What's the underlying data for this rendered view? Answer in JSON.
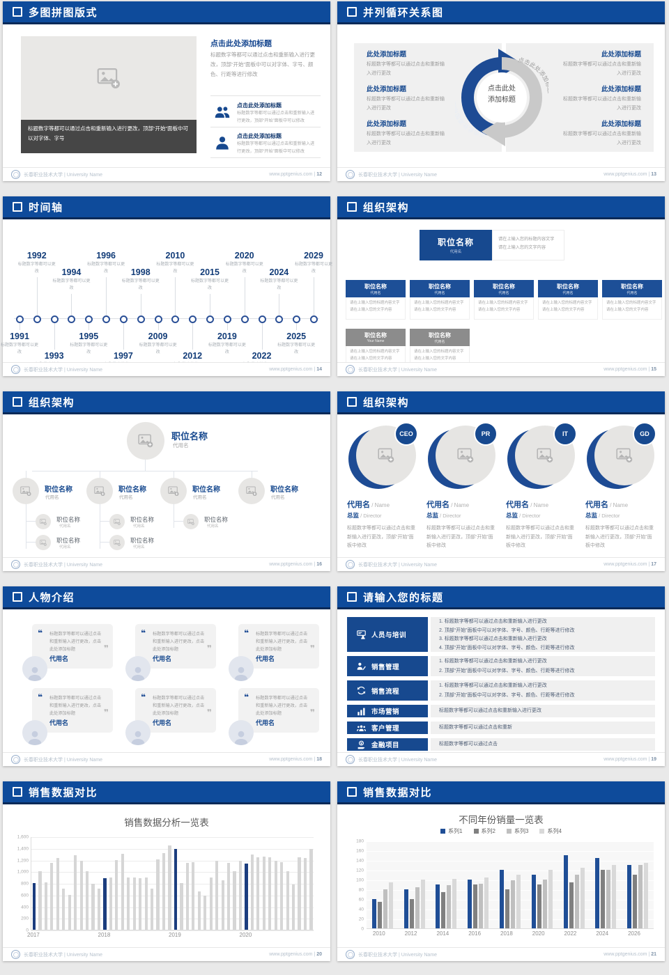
{
  "footer": {
    "org": "长春职业技术大学",
    "separator": "|",
    "org_en": "University Name",
    "site": "www.pptgenius.com"
  },
  "slides_meta": [
    {
      "key": "s12",
      "title": "多图拼图版式",
      "page": "12"
    },
    {
      "key": "s13",
      "title": "并列循环关系图",
      "page": "13"
    },
    {
      "key": "s14",
      "title": "时间轴",
      "page": "14"
    },
    {
      "key": "s15",
      "title": "组织架构",
      "page": "15"
    },
    {
      "key": "s16",
      "title": "组织架构",
      "page": "16"
    },
    {
      "key": "s17",
      "title": "组织架构",
      "page": "17"
    },
    {
      "key": "s18",
      "title": "人物介绍",
      "page": "18"
    },
    {
      "key": "s19",
      "title": "请输入您的标题",
      "page": "19"
    },
    {
      "key": "s20",
      "title": "销售数据对比",
      "page": "20"
    },
    {
      "key": "s21",
      "title": "销售数据对比",
      "page": "21"
    }
  ],
  "slides": {
    "s12": {
      "caption": "标题数字等都可以通过点击和重新输入进行更改，顶部“开始”面板中可以对字体、字号",
      "right_title": "点击此处添加标题",
      "right_body": "标题数字等都可以通过点击和重新输入进行更改，顶部“开始”面板中可以对字体、字号、颜色、行距等进行修改",
      "items": [
        {
          "icon": "people-group-icon",
          "title": "点击此处添加标题",
          "text": "标题数字等都可以通过点击和重新输入进行更改，顶部“开始”面板中可以修改"
        },
        {
          "icon": "person-icon",
          "title": "点击此处添加标题",
          "text": "标题数字等都可以通过点击和重新输入进行更改，顶部“开始”面板中可以修改"
        }
      ]
    },
    "s13": {
      "center_line1": "点击此处",
      "center_line2": "添加标题",
      "arrow_label_left": "点击此处添加标题",
      "arrow_label_right": "点击此处添加标题",
      "left_items": [
        {
          "title": "此处添加标题",
          "text": "标题数字等都可以通过点击和重新输入进行更改"
        },
        {
          "title": "此处添加标题",
          "text": "标题数字等都可以通过点击和重新输入进行更改"
        },
        {
          "title": "此处添加标题",
          "text": "标题数字等都可以通过点击和重新输入进行更改"
        }
      ],
      "right_items": [
        {
          "title": "此处添加标题",
          "text": "标题数字等都可以通过点击和重新输入进行更改"
        },
        {
          "title": "此处添加标题",
          "text": "标题数字等都可以通过点击和重新输入进行更改"
        },
        {
          "title": "此处添加标题",
          "text": "标题数字等都可以通过点击和重新输入进行更改"
        }
      ]
    },
    "s14": {
      "caption": "标题数字等都可以更改",
      "events": [
        {
          "year": "1991",
          "side": "below",
          "level": "near"
        },
        {
          "year": "1992",
          "side": "above",
          "level": "far"
        },
        {
          "year": "1993",
          "side": "below",
          "level": "far"
        },
        {
          "year": "1994",
          "side": "above",
          "level": "near"
        },
        {
          "year": "1995",
          "side": "below",
          "level": "near"
        },
        {
          "year": "1996",
          "side": "above",
          "level": "far"
        },
        {
          "year": "1997",
          "side": "below",
          "level": "far"
        },
        {
          "year": "1998",
          "side": "above",
          "level": "near"
        },
        {
          "year": "2009",
          "side": "below",
          "level": "near"
        },
        {
          "year": "2010",
          "side": "above",
          "level": "far"
        },
        {
          "year": "2012",
          "side": "below",
          "level": "far"
        },
        {
          "year": "2015",
          "side": "above",
          "level": "near"
        },
        {
          "year": "2019",
          "side": "below",
          "level": "near"
        },
        {
          "year": "2020",
          "side": "above",
          "level": "far"
        },
        {
          "year": "2022",
          "side": "below",
          "level": "far"
        },
        {
          "year": "2024",
          "side": "above",
          "level": "near"
        },
        {
          "year": "2025",
          "side": "below",
          "level": "near"
        },
        {
          "year": "2029",
          "side": "above",
          "level": "far"
        }
      ]
    },
    "s15": {
      "root_title": "职位名称",
      "root_sub": "代用名",
      "info_line1": "请在上输入您的标题内容文字",
      "info_line2": "请在上输入您的文字内容",
      "card_line1": "请在上输入您的标题内容文字",
      "card_line2": "请在上输入您的文字内容",
      "row1": [
        {
          "title": "职位名称",
          "sub": "代用名",
          "header_color": "#1d4f97"
        },
        {
          "title": "职位名称",
          "sub": "代用名",
          "header_color": "#1d4f97"
        },
        {
          "title": "职位名称",
          "sub": "代用名",
          "header_color": "#1d4f97"
        },
        {
          "title": "职位名称",
          "sub": "代用名",
          "header_color": "#1d4f97"
        },
        {
          "title": "职位名称",
          "sub": "代用名",
          "header_color": "#1d4f97"
        }
      ],
      "row2": [
        {
          "title": "职位名称",
          "sub": "Your Name",
          "header_color": "#8c8c8c"
        },
        {
          "title": "职位名称",
          "sub": "代用名",
          "header_color": "#8c8c8c"
        }
      ]
    },
    "s16": {
      "root": {
        "title": "职位名称",
        "sub": "代用名"
      },
      "level2": [
        {
          "title": "职位名称",
          "sub": "代用名",
          "subs": 2
        },
        {
          "title": "职位名称",
          "sub": "代用名",
          "subs": 2
        },
        {
          "title": "职位名称",
          "sub": "代用名",
          "subs": 1
        },
        {
          "title": "职位名称",
          "sub": "代用名",
          "subs": 0
        }
      ],
      "sub_title": "职位名称",
      "sub_sub": "代用名"
    },
    "s17": {
      "badges": [
        "CEO",
        "PR",
        "IT",
        "GD"
      ],
      "name": "代用名",
      "name_en": "Name",
      "role": "总监",
      "role_en": "Director",
      "body": "标题数字等都可以通过点击和重新输入进行更改，顶部“开始”面板中修改"
    },
    "s18": {
      "card_text": "标题数字等都可以通过点击和重新输入进行更改，点击此处添加标题",
      "card_name": "代用名",
      "cards": 6
    },
    "s19": {
      "rows": [
        {
          "icon": "training-icon",
          "label": "人员与培训",
          "numbered": true,
          "height": 50,
          "lines": [
            "标题数字等都可以通过点击和重新输入进行更改",
            "顶部“开始”面板中可以对字体、字号、颜色、行距等进行修改",
            "标题数字等都可以通过点击和重新输入进行更改",
            "顶部“开始”面板中可以对字体、字号、颜色、行距等进行修改"
          ]
        },
        {
          "icon": "sales-manage-icon",
          "label": "销售管理",
          "numbered": true,
          "height": 29,
          "lines": [
            "标题数字等都可以通过点击和重新输入进行更改",
            "顶部“开始”面板中可以对字体、字号、颜色、行距等进行修改"
          ]
        },
        {
          "icon": "sales-process-icon",
          "label": "销售流程",
          "numbered": true,
          "height": 29,
          "lines": [
            "标题数字等都可以通过点击和重新输入进行更改",
            "顶部“开始”面板中可以对字体、字号、颜色、行距等进行修改"
          ]
        },
        {
          "icon": "marketing-icon",
          "label": "市场营销",
          "numbered": false,
          "height": 18,
          "lines": [
            "标题数字等都可以通过点击和重新输入进行更改"
          ]
        },
        {
          "icon": "customer-icon",
          "label": "客户管理",
          "numbered": false,
          "height": 18,
          "lines": [
            "标题数字等都可以通过点击和重新"
          ]
        },
        {
          "icon": "finance-icon",
          "label": "金融项目",
          "numbered": false,
          "height": 18,
          "lines": [
            "标题数字等都可以通过点击"
          ]
        }
      ]
    }
  },
  "chart_data": [
    {
      "type": "bar",
      "title": "销售数据分析一览表",
      "xlabel": "",
      "ylabel": "",
      "categories": [
        "2017",
        "2018",
        "2019",
        "2020"
      ],
      "months_per_group": 12,
      "values": [
        800,
        1000,
        810,
        1150,
        1230,
        700,
        600,
        1280,
        1180,
        1000,
        790,
        700,
        880,
        890,
        1190,
        1300,
        900,
        900,
        880,
        900,
        700,
        1210,
        1310,
        1450,
        1390,
        800,
        1150,
        1160,
        660,
        580,
        900,
        1180,
        850,
        1150,
        1000,
        1180,
        1140,
        1290,
        1240,
        1250,
        1240,
        1180,
        1160,
        1000,
        780,
        1240,
        1230,
        1390
      ],
      "highlight_every": 12,
      "highlight_color": "#1b3d7e",
      "bar_color": "#d6d6d6",
      "ylim": [
        0,
        1600
      ],
      "yticks": [
        "0",
        "200",
        "400",
        "600",
        "800",
        "1,000",
        "1,200",
        "1,400",
        "1,600"
      ],
      "grid": true,
      "legend_position": "none"
    },
    {
      "type": "bar",
      "title": "不同年份销量一览表",
      "xlabel": "",
      "ylabel": "",
      "categories": [
        "2010",
        "2012",
        "2014",
        "2016",
        "2018",
        "2020",
        "2022",
        "2024",
        "2026"
      ],
      "series": [
        {
          "name": "系列1",
          "color": "#1f4e96",
          "values": [
            60,
            80,
            90,
            100,
            120,
            110,
            150,
            145,
            130
          ]
        },
        {
          "name": "系列2",
          "color": "#808080",
          "values": [
            55,
            60,
            75,
            90,
            80,
            90,
            95,
            120,
            110
          ]
        },
        {
          "name": "系列3",
          "color": "#bfbfbf",
          "values": [
            80,
            85,
            88,
            92,
            98,
            100,
            110,
            120,
            130
          ]
        },
        {
          "name": "系列4",
          "color": "#d9d9d9",
          "values": [
            95,
            100,
            102,
            105,
            110,
            120,
            125,
            130,
            135
          ]
        }
      ],
      "ylim": [
        0,
        180
      ],
      "yticks": [
        "0",
        "20",
        "40",
        "60",
        "80",
        "100",
        "120",
        "140",
        "160",
        "180"
      ],
      "grid": true,
      "legend_position": "top"
    }
  ]
}
